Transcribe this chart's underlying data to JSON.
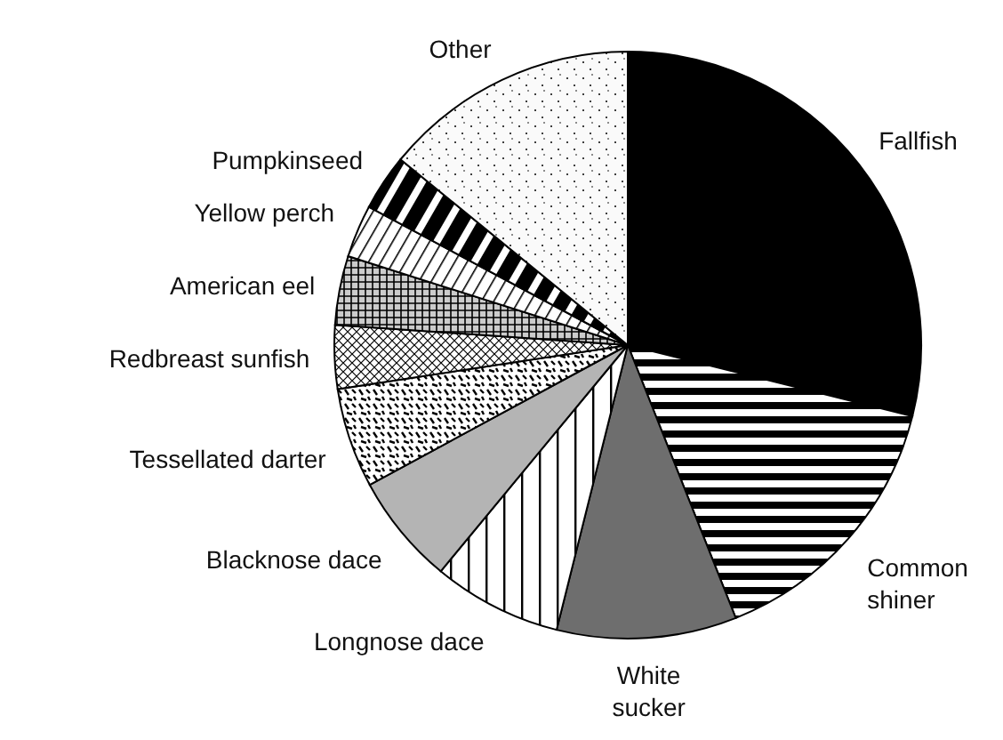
{
  "chart_data": {
    "type": "pie",
    "categories": [
      "Fallfish",
      "Common shiner",
      "White sucker",
      "Longnose dace",
      "Blacknose dace",
      "Tessellated darter",
      "Redbreast sunfish",
      "American eel",
      "Yellow perch",
      "Pumpkinseed",
      "Other"
    ],
    "values": [
      28.9,
      15.1,
      9.9,
      7.1,
      6.1,
      5.5,
      3.5,
      3.8,
      2.9,
      3.1,
      14.1
    ],
    "colors": [
      "#000000",
      "#000000",
      "#6e6e6e",
      "#000000",
      "#b4b4b4",
      "#000000",
      "#000000",
      "#000000",
      "#000000",
      "#000000",
      "#000000"
    ]
  }
}
